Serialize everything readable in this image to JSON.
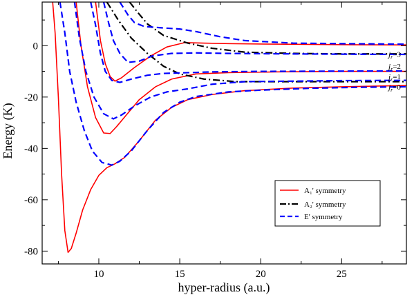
{
  "chart_data": {
    "type": "line",
    "title": "",
    "xlabel": "hyper-radius (a.u.)",
    "ylabel": "Energy (K)",
    "xlim": [
      6.5,
      29
    ],
    "ylim": [
      -85,
      17
    ],
    "xticks": [
      10,
      15,
      20,
      25
    ],
    "yticks": [
      -80,
      -60,
      -40,
      -20,
      0
    ],
    "grid": false,
    "legend_position": "lower-right",
    "legend": [
      {
        "label": "A₁' symmetry",
        "color": "#ff0000",
        "dash": "solid"
      },
      {
        "label": "A₂' symmetry",
        "color": "#000000",
        "dash": "dashdot"
      },
      {
        "label": "E' symmetry",
        "color": "#0000ff",
        "dash": "dashed"
      }
    ],
    "annotations": [
      {
        "text": "jr=3",
        "x": 28.6,
        "y": -3.2
      },
      {
        "text": "jr=2",
        "x": 28.6,
        "y": -8.0
      },
      {
        "text": "jr=1",
        "x": 28.6,
        "y": -12.0
      },
      {
        "text": "jr=0",
        "x": 28.6,
        "y": -16.0
      }
    ],
    "series": [
      {
        "symmetry": "A1",
        "color": "#ff0000",
        "dash": "solid",
        "points": [
          [
            7.15,
            17
          ],
          [
            7.3,
            5
          ],
          [
            7.5,
            -20
          ],
          [
            7.7,
            -50
          ],
          [
            7.9,
            -72
          ],
          [
            8.1,
            -80.5
          ],
          [
            8.3,
            -79
          ],
          [
            8.6,
            -73
          ],
          [
            9.0,
            -64
          ],
          [
            9.5,
            -56
          ],
          [
            10.0,
            -50.5
          ],
          [
            10.5,
            -47.5
          ],
          [
            11.0,
            -46
          ],
          [
            11.6,
            -43.5
          ],
          [
            12.5,
            -37
          ],
          [
            13.5,
            -29
          ],
          [
            14.5,
            -24
          ],
          [
            15.5,
            -21
          ],
          [
            17,
            -19
          ],
          [
            19,
            -17.5
          ],
          [
            22,
            -16.5
          ],
          [
            25,
            -16
          ],
          [
            29,
            -15.5
          ]
        ]
      },
      {
        "symmetry": "A1",
        "color": "#ff0000",
        "dash": "solid",
        "points": [
          [
            8.6,
            17
          ],
          [
            8.9,
            0
          ],
          [
            9.3,
            -16
          ],
          [
            9.8,
            -28
          ],
          [
            10.3,
            -34
          ],
          [
            10.7,
            -34.2
          ],
          [
            11.1,
            -31.5
          ],
          [
            11.7,
            -27
          ],
          [
            12.5,
            -21
          ],
          [
            13.5,
            -16
          ],
          [
            14.5,
            -13
          ],
          [
            16,
            -11
          ],
          [
            18,
            -10.5
          ],
          [
            21,
            -10.2
          ],
          [
            25,
            -10
          ],
          [
            29,
            -10
          ]
        ]
      },
      {
        "symmetry": "A1",
        "color": "#ff0000",
        "dash": "solid",
        "points": [
          [
            9.8,
            17
          ],
          [
            10.1,
            2
          ],
          [
            10.4,
            -7
          ],
          [
            10.7,
            -12
          ],
          [
            11.0,
            -13.8
          ],
          [
            11.4,
            -12.5
          ],
          [
            12.2,
            -8.5
          ],
          [
            13.2,
            -4
          ],
          [
            14.2,
            -0.5
          ],
          [
            15.3,
            1.2
          ],
          [
            16.5,
            1
          ],
          [
            18,
            0.8
          ],
          [
            21,
            0.6
          ],
          [
            25,
            0.4
          ],
          [
            29,
            0.3
          ]
        ]
      },
      {
        "symmetry": "A2",
        "color": "#000000",
        "dash": "dashdot",
        "points": [
          [
            10.5,
            17
          ],
          [
            11.2,
            10
          ],
          [
            12.0,
            3
          ],
          [
            13.0,
            -3
          ],
          [
            14.0,
            -8
          ],
          [
            15.0,
            -11
          ],
          [
            16.5,
            -13
          ],
          [
            18.5,
            -14
          ],
          [
            22,
            -14
          ],
          [
            25,
            -14
          ],
          [
            29,
            -14
          ]
        ]
      },
      {
        "symmetry": "A2",
        "color": "#000000",
        "dash": "dashdot",
        "points": [
          [
            11.9,
            17
          ],
          [
            12.4,
            13
          ],
          [
            13.0,
            8.5
          ],
          [
            14.0,
            4
          ],
          [
            15.5,
            1
          ],
          [
            17,
            -1
          ],
          [
            19,
            -2.5
          ],
          [
            22,
            -3
          ],
          [
            25,
            -3.2
          ],
          [
            29,
            -3.2
          ]
        ]
      },
      {
        "symmetry": "E",
        "color": "#0000ff",
        "dash": "dashed",
        "points": [
          [
            7.6,
            17
          ],
          [
            7.9,
            5
          ],
          [
            8.2,
            -10
          ],
          [
            8.6,
            -22
          ],
          [
            9.1,
            -33
          ],
          [
            9.6,
            -41
          ],
          [
            10.2,
            -45.5
          ],
          [
            10.8,
            -46.5
          ],
          [
            11.3,
            -45
          ],
          [
            12.0,
            -41
          ],
          [
            13.0,
            -33
          ],
          [
            14.0,
            -26
          ],
          [
            15.0,
            -22
          ],
          [
            16,
            -19.8
          ],
          [
            18,
            -18
          ],
          [
            20,
            -17.3
          ],
          [
            23,
            -16.6
          ],
          [
            26,
            -16.2
          ],
          [
            29,
            -16
          ]
        ]
      },
      {
        "symmetry": "E",
        "color": "#0000ff",
        "dash": "dashed",
        "points": [
          [
            8.5,
            17
          ],
          [
            8.8,
            3
          ],
          [
            9.2,
            -10
          ],
          [
            9.7,
            -20
          ],
          [
            10.3,
            -26.5
          ],
          [
            10.9,
            -28.5
          ],
          [
            11.4,
            -27
          ],
          [
            12.2,
            -23.5
          ],
          [
            13.2,
            -20
          ],
          [
            14.2,
            -18
          ],
          [
            15.5,
            -16.8
          ],
          [
            17,
            -15
          ],
          [
            19,
            -14
          ],
          [
            22,
            -13.8
          ],
          [
            25,
            -13.6
          ],
          [
            29,
            -13.5
          ]
        ]
      },
      {
        "symmetry": "E",
        "color": "#0000ff",
        "dash": "dashed",
        "points": [
          [
            9.5,
            17
          ],
          [
            9.8,
            8
          ],
          [
            10.1,
            -3
          ],
          [
            10.4,
            -10
          ],
          [
            10.8,
            -13.5
          ],
          [
            11.3,
            -14.3
          ],
          [
            12.0,
            -13
          ],
          [
            13.0,
            -11.5
          ],
          [
            14.0,
            -10.8
          ],
          [
            15.5,
            -10.5
          ],
          [
            17,
            -10.2
          ],
          [
            20,
            -10
          ],
          [
            25,
            -9.9
          ],
          [
            29,
            -9.8
          ]
        ]
      },
      {
        "symmetry": "E",
        "color": "#0000ff",
        "dash": "dashed",
        "points": [
          [
            10.3,
            17
          ],
          [
            10.6,
            9
          ],
          [
            10.9,
            2
          ],
          [
            11.3,
            -3
          ],
          [
            11.8,
            -6.5
          ],
          [
            12.5,
            -6
          ],
          [
            13.3,
            -4
          ],
          [
            14.5,
            -3
          ],
          [
            16,
            -2.8
          ],
          [
            18,
            -3
          ],
          [
            22,
            -3.2
          ],
          [
            25,
            -3.3
          ],
          [
            29,
            -3.4
          ]
        ]
      },
      {
        "symmetry": "E",
        "color": "#0000ff",
        "dash": "dashed",
        "points": [
          [
            11.3,
            17
          ],
          [
            11.8,
            12
          ],
          [
            12.2,
            9
          ],
          [
            12.8,
            7.5
          ],
          [
            13.8,
            7
          ],
          [
            15,
            6.5
          ],
          [
            16,
            5.5
          ],
          [
            17.5,
            3.5
          ],
          [
            19,
            2
          ],
          [
            22,
            1
          ],
          [
            25,
            0.8
          ],
          [
            29,
            0.6
          ]
        ]
      }
    ]
  }
}
